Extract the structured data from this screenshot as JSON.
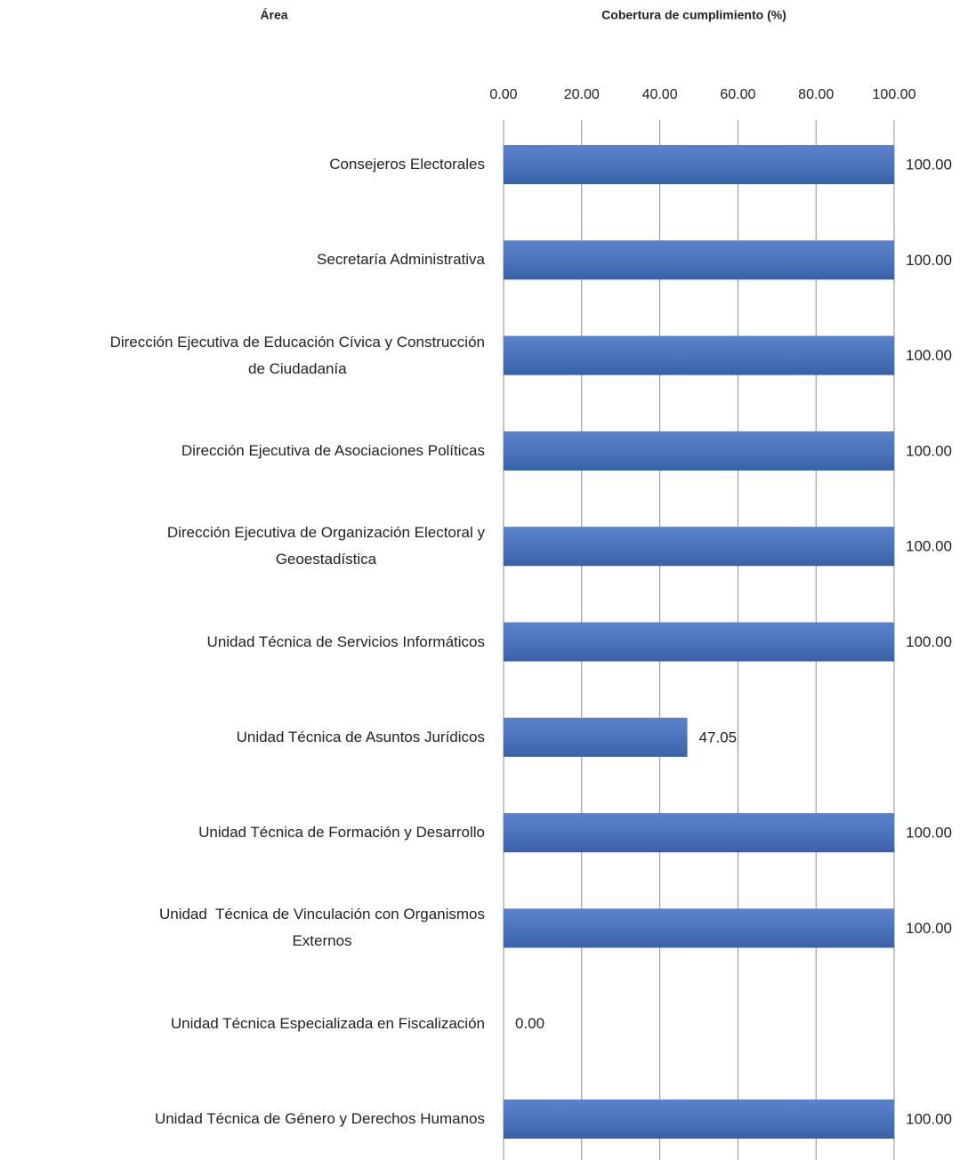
{
  "chart_data": {
    "type": "barh",
    "category_axis_label": "Área",
    "value_axis_label": "Cobertura de cumplimiento (%)",
    "categories": [
      "Consejeros Electorales",
      "Secretaría Administrativa",
      "Dirección Ejecutiva de Educación Cívica y Construcción\nde Ciudadanía",
      "Dirección Ejecutiva de Asociaciones Políticas",
      "Dirección Ejecutiva de Organización Electoral y\nGeoestadística",
      "Unidad Técnica de Servicios Informáticos",
      "Unidad Técnica de Asuntos Jurídicos",
      "Unidad Técnica de Formación y Desarrollo",
      "Unidad  Técnica de Vinculación con Organismos\nExternos",
      "Unidad Técnica Especializada en Fiscalización",
      "Unidad Técnica de Género y Derechos Humanos"
    ],
    "values": [
      100,
      100,
      100,
      100,
      100,
      100,
      47.05,
      100,
      100,
      0,
      100
    ],
    "value_labels": [
      "100.00",
      "100.00",
      "100.00",
      "100.00",
      "100.00",
      "100.00",
      "47.05",
      "100.00",
      "100.00",
      "0.00",
      "100.00"
    ],
    "color": "#4472c4",
    "xlim": [
      0,
      100
    ],
    "xticks": [
      {
        "value": 0,
        "label": "0.00"
      },
      {
        "value": 20,
        "label": "20.00"
      },
      {
        "value": 40,
        "label": "40.00"
      },
      {
        "value": 60,
        "label": "60.00"
      },
      {
        "value": 80,
        "label": "80.00"
      },
      {
        "value": 100,
        "label": "100.00"
      }
    ],
    "grid": true
  }
}
